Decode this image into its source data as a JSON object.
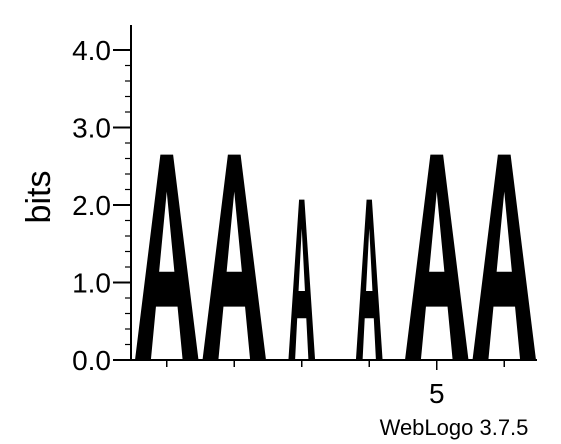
{
  "chart_data": {
    "type": "sequence-logo",
    "ylabel": "bits",
    "ylim": [
      0,
      4.0
    ],
    "y_ticks": [
      "0.0",
      "1.0",
      "2.0",
      "3.0",
      "4.0"
    ],
    "positions": [
      1,
      2,
      3,
      4,
      5,
      6
    ],
    "x_tick_labels": [
      {
        "position": 5,
        "label": "5"
      }
    ],
    "stacks": [
      {
        "position": 1,
        "letter": "A",
        "bits": 2.65
      },
      {
        "position": 2,
        "letter": "A",
        "bits": 2.65
      },
      {
        "position": 3,
        "letter": "A",
        "bits": 2.07
      },
      {
        "position": 4,
        "letter": "A",
        "bits": 2.07
      },
      {
        "position": 5,
        "letter": "A",
        "bits": 2.65
      },
      {
        "position": 6,
        "letter": "A",
        "bits": 2.65
      }
    ],
    "colors": {
      "A": "#000000"
    },
    "credit": "WebLogo 3.7.5"
  }
}
